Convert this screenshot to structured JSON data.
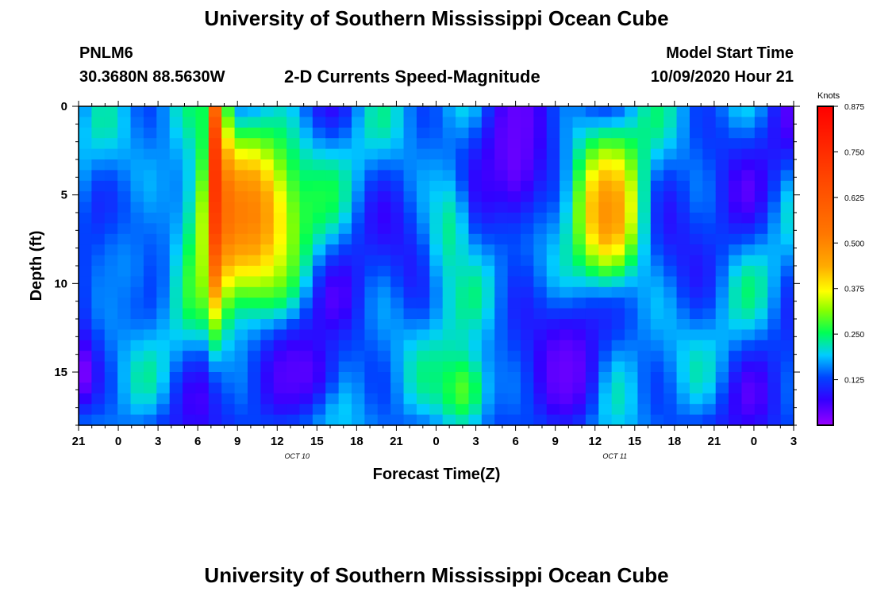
{
  "header": {
    "title": "University of Southern Mississippi Ocean Cube",
    "station": "PNLM6",
    "coords": "30.3680N 88.5630W",
    "subtitle": "2-D Currents Speed-Magnitude",
    "model_label": "Model Start Time",
    "model_time": "10/09/2020 Hour 21"
  },
  "footer": {
    "title": "University of Southern Mississippi Ocean Cube"
  },
  "chart_data": {
    "type": "heatmap",
    "title": "2-D Currents Speed-Magnitude",
    "xlabel": "Forecast Time(Z)",
    "ylabel": "Depth (ft)",
    "x_tick_labels": [
      "21",
      "0",
      "3",
      "6",
      "9",
      "12",
      "15",
      "18",
      "21",
      "0",
      "3",
      "6",
      "9",
      "12",
      "15",
      "18",
      "21",
      "0",
      "3"
    ],
    "x_date_labels": [
      {
        "text": "OCT 10",
        "after_tick": 5
      },
      {
        "text": "OCT 11",
        "after_tick": 13
      }
    ],
    "y_tick_labels": [
      "0",
      "5",
      "10",
      "15"
    ],
    "y_range": [
      0,
      18
    ],
    "y_reversed": true,
    "colorbar": {
      "unit": "Knots",
      "ticks": [
        "0.875",
        "0.750",
        "0.625",
        "0.500",
        "0.375",
        "0.250",
        "0.125"
      ],
      "range": [
        0,
        0.875
      ]
    },
    "approx_speed_fields": [
      {
        "center_hour": 12.5,
        "center_depth": 6,
        "hour_width": 9,
        "depth_height": 11,
        "speed": 0.45
      },
      {
        "center_hour": 10.5,
        "center_depth": 4,
        "hour_width": 1.4,
        "depth_height": 14,
        "speed": 0.68
      },
      {
        "center_hour": 40,
        "center_depth": 6,
        "hour_width": 5.5,
        "depth_height": 9,
        "speed": 0.42
      },
      {
        "center_hour": 28,
        "center_depth": 7,
        "hour_width": 4,
        "depth_height": 9,
        "speed": 0.2
      },
      {
        "center_hour": 0,
        "center_depth": 15,
        "hour_width": 3,
        "depth_height": 5,
        "speed": 0.005
      },
      {
        "center_hour": 29,
        "center_depth": 16,
        "hour_width": 5,
        "depth_height": 6,
        "speed": 0.25
      },
      {
        "center_hour": 33,
        "center_depth": 3,
        "hour_width": 5,
        "depth_height": 10,
        "speed": 0.03
      },
      {
        "center_hour": 37,
        "center_depth": 15,
        "hour_width": 5,
        "depth_height": 7,
        "speed": 0.03
      },
      {
        "center_hour": 17,
        "center_depth": 15,
        "hour_width": 6,
        "depth_height": 5,
        "speed": 0.04
      },
      {
        "center_hour": 3.5,
        "center_depth": 9,
        "hour_width": 6,
        "depth_height": 8,
        "speed": 0.14
      }
    ]
  }
}
